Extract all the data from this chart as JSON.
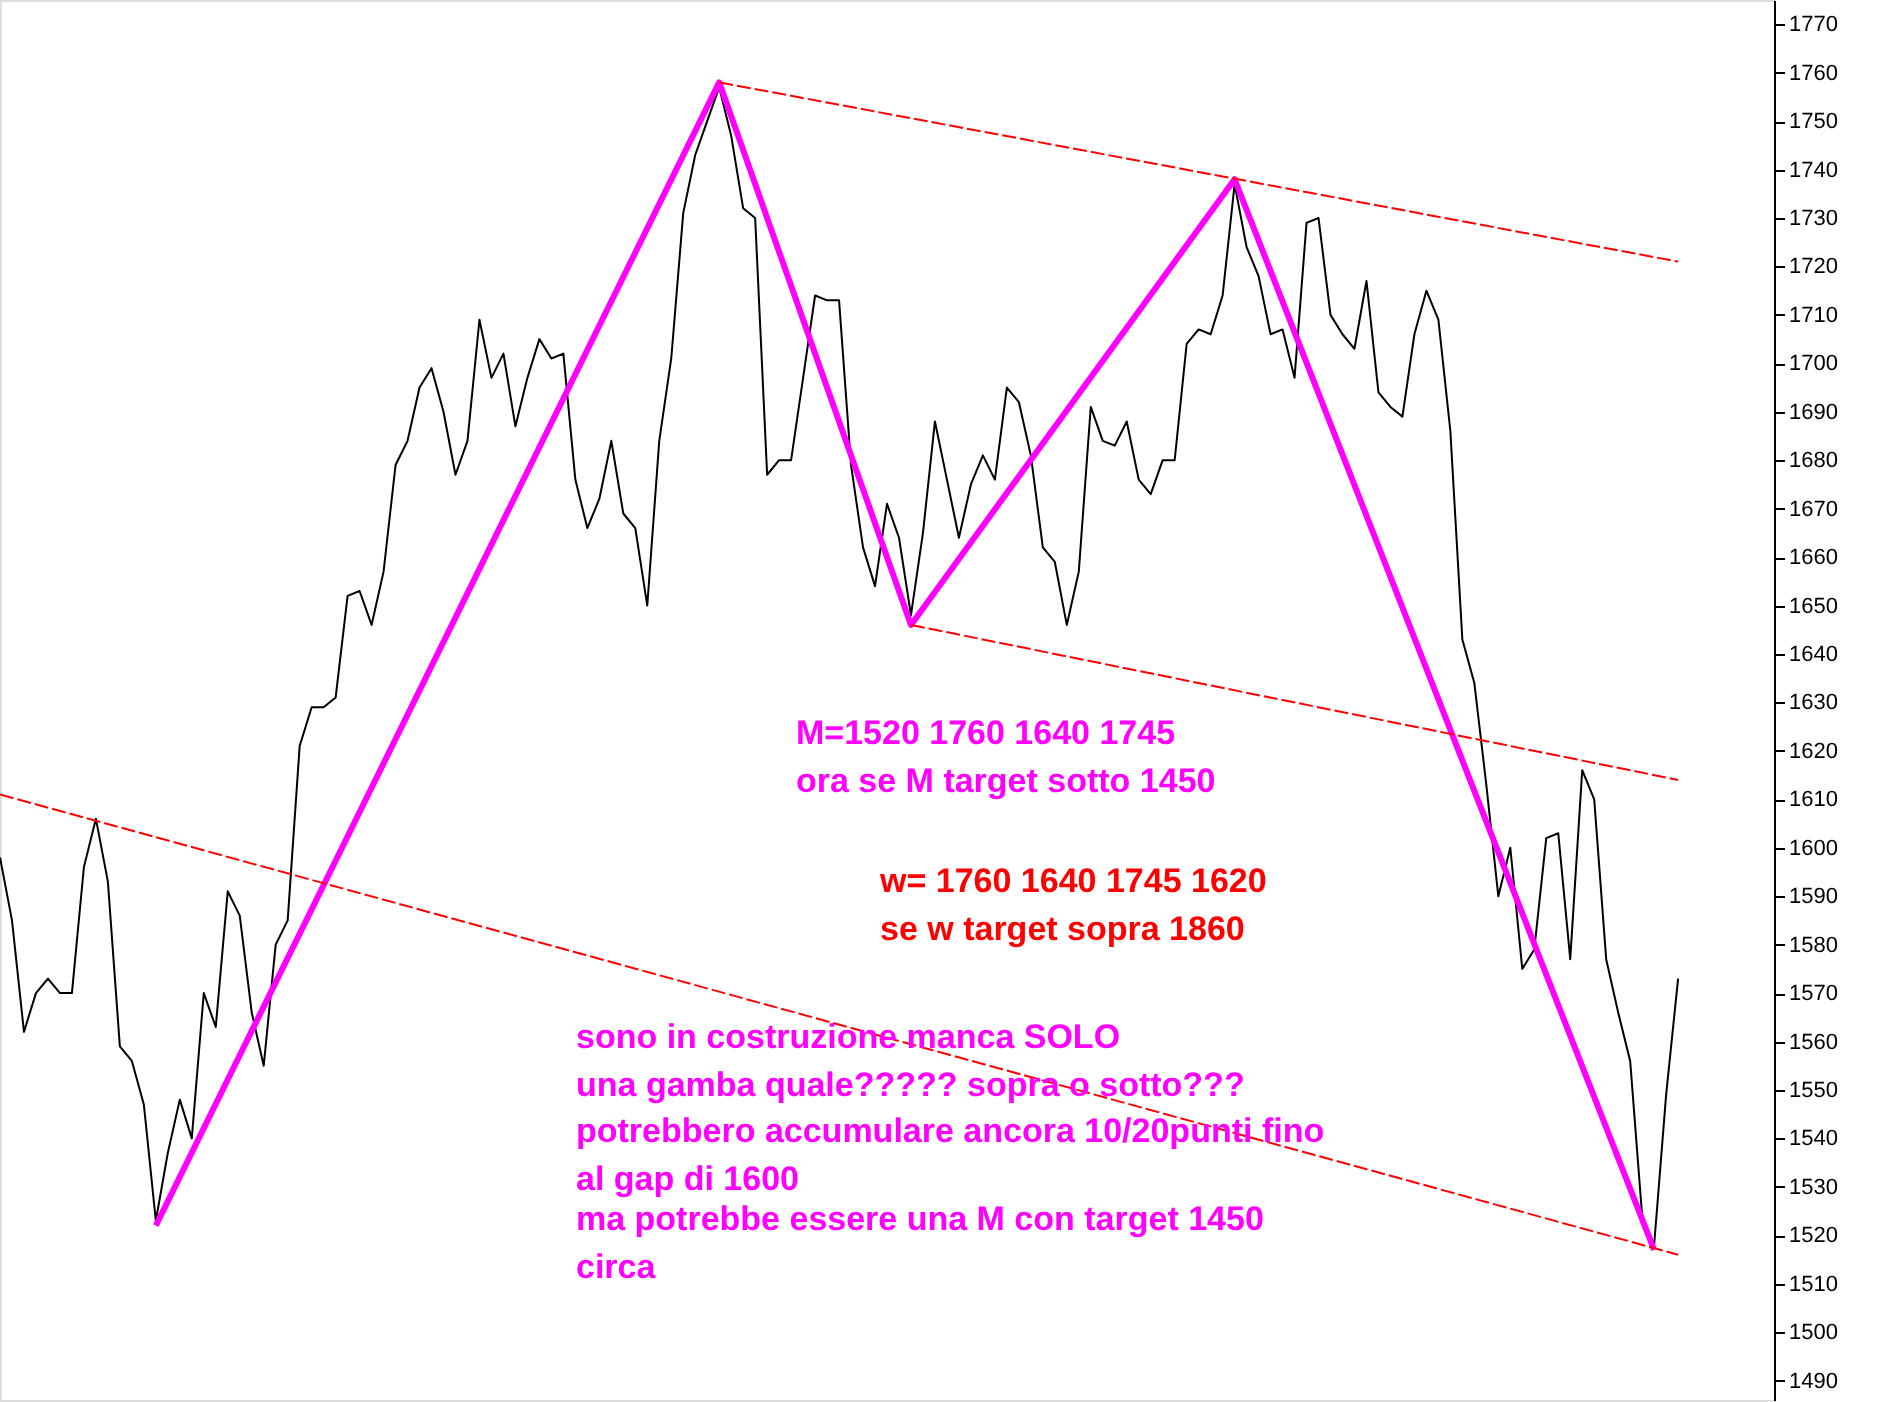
{
  "chart_data": {
    "type": "line",
    "categories": [
      null,
      null,
      null,
      null,
      null,
      null,
      null,
      null,
      null,
      null,
      null,
      null,
      null,
      null,
      null,
      null,
      null,
      null,
      null,
      null,
      null,
      null,
      null,
      null,
      null,
      null,
      null,
      null,
      null,
      null,
      null,
      null,
      null,
      null,
      null,
      null,
      null,
      null,
      null,
      null,
      null,
      null,
      null,
      null,
      null,
      null,
      null,
      null,
      null,
      null,
      null,
      null,
      null,
      null,
      null,
      null,
      null,
      null,
      null,
      null,
      null,
      null,
      null,
      null,
      null,
      null,
      null,
      null,
      null,
      null,
      null,
      null,
      null,
      null,
      null,
      null,
      null,
      null,
      null,
      null,
      null,
      null,
      null,
      null,
      null,
      null,
      null,
      null,
      null,
      null,
      null,
      null,
      null,
      null,
      null,
      null,
      null,
      null,
      null,
      null,
      null,
      null,
      null,
      null,
      null,
      null,
      null,
      null,
      null,
      null,
      null,
      null,
      null,
      null,
      null,
      null,
      null,
      null,
      null,
      null,
      null,
      null,
      null,
      null,
      null,
      null,
      null,
      null,
      null,
      null,
      null,
      null,
      null,
      null,
      null,
      null,
      null,
      null,
      null,
      null,
      null
    ],
    "series": [
      {
        "color": "#000000",
        "line_style": "solid",
        "values": [
          1598,
          1585,
          1562,
          1570,
          1573,
          1570,
          1570,
          1596,
          1606,
          1593,
          1559,
          1556,
          1547,
          1523,
          1537,
          1548,
          1540,
          1570,
          1563,
          1591,
          1586,
          1566,
          1555,
          1580,
          1585,
          1621,
          1629,
          1629,
          1631,
          1652,
          1653,
          1646,
          1657,
          1679,
          1684,
          1695,
          1699,
          1690,
          1677,
          1684,
          1709,
          1697,
          1702,
          1687,
          1697,
          1705,
          1701,
          1702,
          1676,
          1666,
          1672,
          1684,
          1669,
          1666,
          1650,
          1684,
          1701,
          1731,
          1743,
          1750,
          1757,
          1747,
          1732,
          1730,
          1677,
          1680,
          1680,
          1697,
          1714,
          1713,
          1713,
          1679,
          1662,
          1654,
          1671,
          1664,
          1648,
          1665,
          1688,
          1676,
          1664,
          1675,
          1681,
          1676,
          1695,
          1692,
          1681,
          1662,
          1659,
          1646,
          1657,
          1691,
          1684,
          1683,
          1688,
          1676,
          1673,
          1680,
          1680,
          1704,
          1707,
          1706,
          1714,
          1737,
          1724,
          1718,
          1706,
          1707,
          1697,
          1729,
          1730,
          1710,
          1706,
          1703,
          1717,
          1694,
          1691,
          1689,
          1706,
          1715,
          1709,
          1686,
          1643,
          1634,
          1613,
          1590,
          1600,
          1575,
          1579,
          1602,
          1603,
          1577,
          1616,
          1610,
          1577,
          1566,
          1556,
          1524,
          1518,
          1549,
          1573
        ]
      },
      {
        "color": "#ff00ff",
        "line_style": "solid",
        "values": [
          null,
          null,
          null,
          null,
          null,
          null,
          null,
          null,
          null,
          null,
          null,
          null,
          null,
          1522,
          null,
          null,
          null,
          null,
          null,
          null,
          null,
          null,
          null,
          null,
          null,
          null,
          null,
          null,
          null,
          null,
          null,
          null,
          null,
          null,
          null,
          null,
          null,
          null,
          null,
          null,
          null,
          null,
          null,
          null,
          null,
          null,
          null,
          null,
          null,
          null,
          null,
          null,
          null,
          null,
          null,
          null,
          null,
          null,
          null,
          null,
          1758,
          null,
          null,
          null,
          null,
          null,
          null,
          null,
          null,
          null,
          null,
          null,
          null,
          null,
          null,
          null,
          1646,
          null,
          null,
          null,
          null,
          null,
          null,
          null,
          null,
          null,
          null,
          null,
          null,
          null,
          null,
          null,
          null,
          null,
          null,
          null,
          null,
          null,
          null,
          null,
          null,
          null,
          null,
          1738,
          null,
          null,
          null,
          null,
          null,
          null,
          null,
          null,
          null,
          null,
          null,
          null,
          null,
          null,
          null,
          null,
          null,
          null,
          null,
          null,
          null,
          null,
          null,
          null,
          null,
          null,
          null,
          null,
          null,
          null,
          null,
          null,
          null,
          null,
          1517,
          null,
          null
        ]
      },
      {
        "color": "#ff0000",
        "line_style": "dashed",
        "values": [
          null,
          null,
          null,
          null,
          null,
          null,
          null,
          null,
          null,
          null,
          null,
          null,
          null,
          null,
          null,
          null,
          null,
          null,
          null,
          null,
          null,
          null,
          null,
          null,
          null,
          null,
          null,
          null,
          null,
          null,
          null,
          null,
          null,
          null,
          null,
          null,
          null,
          null,
          null,
          null,
          null,
          null,
          null,
          null,
          null,
          null,
          null,
          null,
          null,
          null,
          null,
          null,
          null,
          null,
          null,
          null,
          null,
          null,
          null,
          null,
          1758,
          null,
          null,
          null,
          null,
          null,
          null,
          null,
          null,
          null,
          null,
          null,
          null,
          null,
          null,
          null,
          null,
          null,
          null,
          null,
          null,
          null,
          null,
          null,
          null,
          null,
          null,
          null,
          null,
          null,
          null,
          null,
          null,
          null,
          null,
          null,
          null,
          null,
          null,
          null,
          null,
          null,
          null,
          null,
          null,
          null,
          null,
          null,
          null,
          null,
          null,
          null,
          null,
          null,
          null,
          null,
          null,
          null,
          null,
          null,
          null,
          null,
          null,
          null,
          null,
          null,
          null,
          null,
          null,
          null,
          null,
          null,
          null,
          null,
          null,
          null,
          null,
          null,
          null,
          null,
          1721
        ]
      },
      {
        "color": "#ff0000",
        "line_style": "dashed",
        "values": [
          null,
          null,
          null,
          null,
          null,
          null,
          null,
          null,
          null,
          null,
          null,
          null,
          null,
          null,
          null,
          null,
          null,
          null,
          null,
          null,
          null,
          null,
          null,
          null,
          null,
          null,
          null,
          null,
          null,
          null,
          null,
          null,
          null,
          null,
          null,
          null,
          null,
          null,
          null,
          null,
          null,
          null,
          null,
          null,
          null,
          null,
          null,
          null,
          null,
          null,
          null,
          null,
          null,
          null,
          null,
          null,
          null,
          null,
          null,
          null,
          null,
          null,
          null,
          null,
          null,
          null,
          null,
          null,
          null,
          null,
          null,
          null,
          null,
          null,
          null,
          null,
          1646,
          null,
          null,
          null,
          null,
          null,
          null,
          null,
          null,
          null,
          null,
          null,
          null,
          null,
          null,
          null,
          null,
          null,
          null,
          null,
          null,
          null,
          null,
          null,
          null,
          null,
          null,
          null,
          null,
          null,
          null,
          null,
          null,
          null,
          null,
          null,
          null,
          null,
          null,
          null,
          null,
          null,
          null,
          null,
          null,
          null,
          null,
          null,
          null,
          null,
          null,
          null,
          null,
          null,
          null,
          null,
          null,
          null,
          null,
          null,
          null,
          null,
          null,
          null,
          1614
        ]
      },
      {
        "color": "#ff0000",
        "line_style": "dashed",
        "values": [
          1611,
          null,
          null,
          null,
          null,
          null,
          null,
          null,
          null,
          null,
          null,
          null,
          null,
          null,
          null,
          null,
          null,
          null,
          null,
          null,
          null,
          null,
          null,
          null,
          null,
          null,
          null,
          null,
          null,
          null,
          null,
          null,
          null,
          null,
          null,
          null,
          null,
          null,
          null,
          null,
          null,
          null,
          null,
          null,
          null,
          null,
          null,
          null,
          null,
          null,
          null,
          null,
          null,
          null,
          null,
          null,
          null,
          null,
          null,
          null,
          null,
          null,
          null,
          null,
          null,
          null,
          null,
          null,
          null,
          null,
          null,
          null,
          null,
          null,
          null,
          null,
          null,
          null,
          null,
          null,
          null,
          null,
          null,
          null,
          null,
          null,
          null,
          null,
          null,
          null,
          null,
          null,
          null,
          null,
          null,
          null,
          null,
          null,
          null,
          null,
          null,
          null,
          null,
          null,
          null,
          null,
          null,
          null,
          null,
          null,
          null,
          null,
          null,
          null,
          null,
          null,
          null,
          null,
          null,
          null,
          null,
          null,
          null,
          null,
          null,
          null,
          null,
          null,
          null,
          null,
          null,
          null,
          null,
          null,
          null,
          null,
          null,
          null,
          null,
          null,
          1516
        ]
      }
    ],
    "ylim": [
      1486,
      1775
    ],
    "yticks": [
      1490,
      1500,
      1510,
      1520,
      1530,
      1540,
      1550,
      1560,
      1570,
      1580,
      1590,
      1600,
      1610,
      1620,
      1630,
      1640,
      1650,
      1660,
      1670,
      1680,
      1690,
      1700,
      1710,
      1720,
      1730,
      1740,
      1750,
      1760,
      1770
    ],
    "tick_labels": "y",
    "grid": false,
    "annotations": [
      "M=1520 1760   1640  1745",
      "ora se M target sotto 1450",
      "w= 1760  1640 1745 1620",
      "se w target sopra 1860",
      "sono in costruzione manca SOLO",
      "una gamba quale????? sopra o sotto???",
      "potrebbero accumulare ancora 10/20punti fino",
      "al gap di 1600",
      "ma potrebbe essere una M con target 1450",
      " circa"
    ]
  }
}
